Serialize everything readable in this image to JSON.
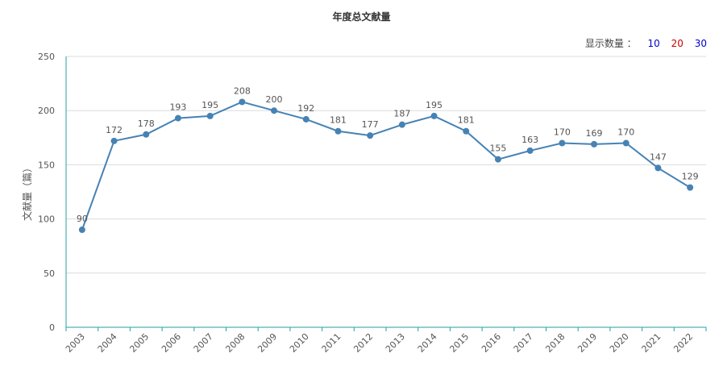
{
  "header": {
    "title": "年度总文献量",
    "count_label": "显示数量 ：",
    "count_options": [
      {
        "label": "10",
        "color": "#0000cc"
      },
      {
        "label": "20",
        "color": "#cc0000"
      },
      {
        "label": "30",
        "color": "#0000cc"
      }
    ]
  },
  "chart_data": {
    "type": "line",
    "title": "年度总文献量",
    "ylabel": "文献量（篇）",
    "xlabel": "",
    "x": [
      "2003",
      "2004",
      "2005",
      "2006",
      "2007",
      "2008",
      "2009",
      "2010",
      "2011",
      "2012",
      "2013",
      "2014",
      "2015",
      "2016",
      "2017",
      "2018",
      "2019",
      "2020",
      "2021",
      "2022"
    ],
    "values": [
      90,
      172,
      178,
      193,
      195,
      208,
      200,
      192,
      181,
      177,
      187,
      195,
      181,
      155,
      163,
      170,
      169,
      170,
      147,
      129
    ],
    "ylim": [
      0,
      250
    ],
    "yticks": [
      0,
      50,
      100,
      150,
      200,
      250
    ],
    "grid": true,
    "line_color": "#4682b4",
    "axis_color": "#26a1a4"
  }
}
